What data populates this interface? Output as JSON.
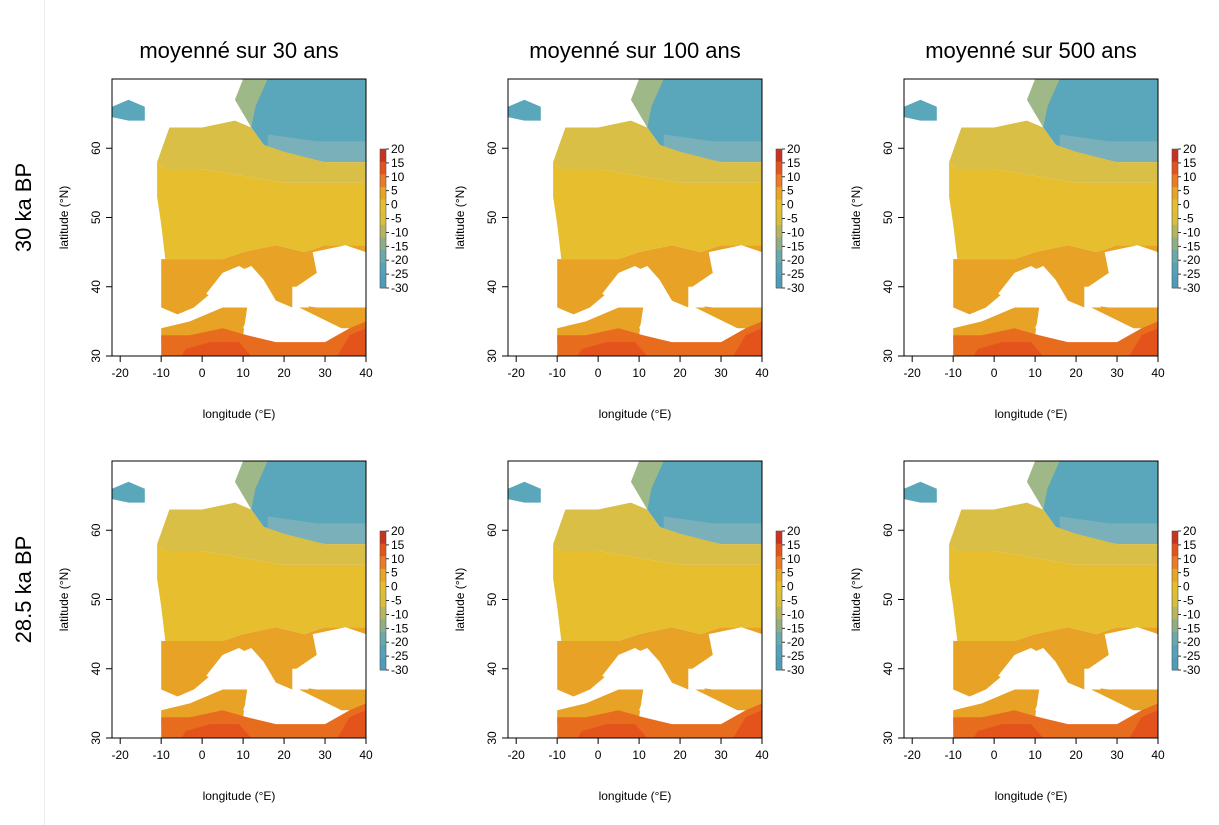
{
  "columns": [
    "moyenné sur 30 ans",
    "moyenné sur 100 ans",
    "moyenné sur 500 ans"
  ],
  "rows": [
    "30 ka BP",
    "28.5 ka BP"
  ],
  "map": {
    "xlabel": "longitude (°E)",
    "ylabel": "latitude (°N)",
    "xticks": [
      "-20",
      "-10",
      "0",
      "10",
      "20",
      "30",
      "40"
    ],
    "yticks": [
      "30",
      "40",
      "50",
      "60"
    ],
    "xlim": [
      -22,
      40
    ],
    "ylim": [
      30,
      70
    ]
  },
  "colorbar": {
    "ticks": [
      "20",
      "15",
      "10",
      "5",
      "0",
      "-5",
      "-10",
      "-15",
      "-20",
      "-25",
      "-30"
    ],
    "colors": [
      "#c8321e",
      "#e5531b",
      "#ec7a22",
      "#e8a523",
      "#e6bd2a",
      "#d9be3a",
      "#b7b45e",
      "#8fae84",
      "#6aa8aa",
      "#55a1b7",
      "#4d9cba"
    ]
  },
  "palette": {
    "ocean": "#ffffff",
    "cold": "#5aa6bb",
    "cool": "#79b0b9",
    "tundra": "#9fb887",
    "mild": "#d9bf46",
    "temperate": "#e7be2e",
    "warm": "#e8a326",
    "hot": "#e86c1e",
    "hotter": "#e5531c"
  }
}
